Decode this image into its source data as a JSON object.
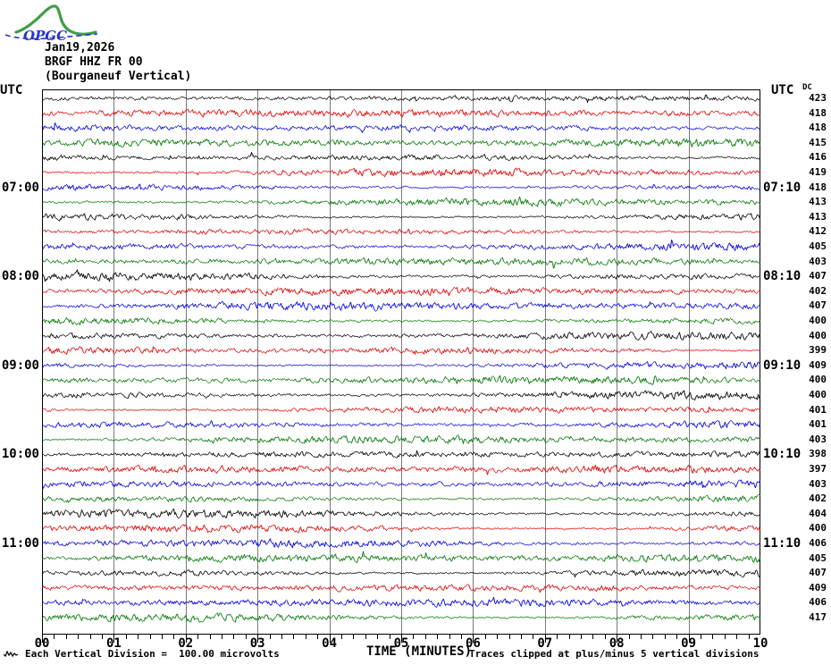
{
  "logo": {
    "text": "OPGC",
    "green": "#3f9e46",
    "blue": "#2a35c8"
  },
  "header": {
    "date": "Jan19,2026",
    "station": "BRGF HHZ FR 00",
    "location": "(Bourganeuf Vertical)"
  },
  "axes": {
    "utc_left": "UTC",
    "utc_right": "UTC",
    "dc_header": "DC",
    "x_title": "TIME (MINUTES)"
  },
  "footer": {
    "scale_note": "Each Vertical Division =  100.00 microvolts",
    "clip_note": "Traces clipped at plus/minus 5 vertical divisions"
  },
  "chart_data": {
    "type": "line",
    "subtype": "helicorder_seismogram",
    "title": "BRGF HHZ FR 00 (Bourganeuf Vertical) Jan19,2026",
    "xlabel": "TIME (MINUTES)",
    "x_range_minutes": [
      0,
      10
    ],
    "x_tick_labels": [
      "00",
      "01",
      "02",
      "03",
      "04",
      "05",
      "06",
      "07",
      "08",
      "09",
      "10"
    ],
    "minor_ticks_per_minute": 6,
    "row_count": 36,
    "minutes_per_row": 10,
    "first_row_start_utc": "06:00",
    "color_cycle_names": [
      "black",
      "red",
      "blue",
      "green"
    ],
    "color_cycle": [
      "#000000",
      "#dd0000",
      "#0000dd",
      "#007700"
    ],
    "grid_color": "#7a7a7a",
    "border_color": "#000000",
    "left_time_labels": [
      {
        "row": 7,
        "label": "07:00"
      },
      {
        "row": 13,
        "label": "08:00"
      },
      {
        "row": 19,
        "label": "09:00"
      },
      {
        "row": 25,
        "label": "10:00"
      },
      {
        "row": 31,
        "label": "11:00"
      }
    ],
    "right_time_labels": [
      {
        "row": 7,
        "label": "07:10"
      },
      {
        "row": 13,
        "label": "08:10"
      },
      {
        "row": 19,
        "label": "09:10"
      },
      {
        "row": 25,
        "label": "10:10"
      },
      {
        "row": 31,
        "label": "11:10"
      }
    ],
    "dc_offsets": [
      423,
      418,
      418,
      415,
      416,
      419,
      418,
      413,
      413,
      412,
      405,
      403,
      407,
      402,
      407,
      400,
      400,
      399,
      409,
      400,
      400,
      401,
      401,
      403,
      398,
      397,
      403,
      402,
      404,
      400,
      406,
      405,
      407,
      409,
      406,
      417
    ],
    "scale": {
      "microvolts_per_division": "100.00",
      "clip_divisions": 5
    },
    "trace_character": "continuous band-limited background noise, typical amplitude 1-3 px with intermittent higher-amplitude bursts, clipped at plus/minus 5 vertical divisions"
  }
}
